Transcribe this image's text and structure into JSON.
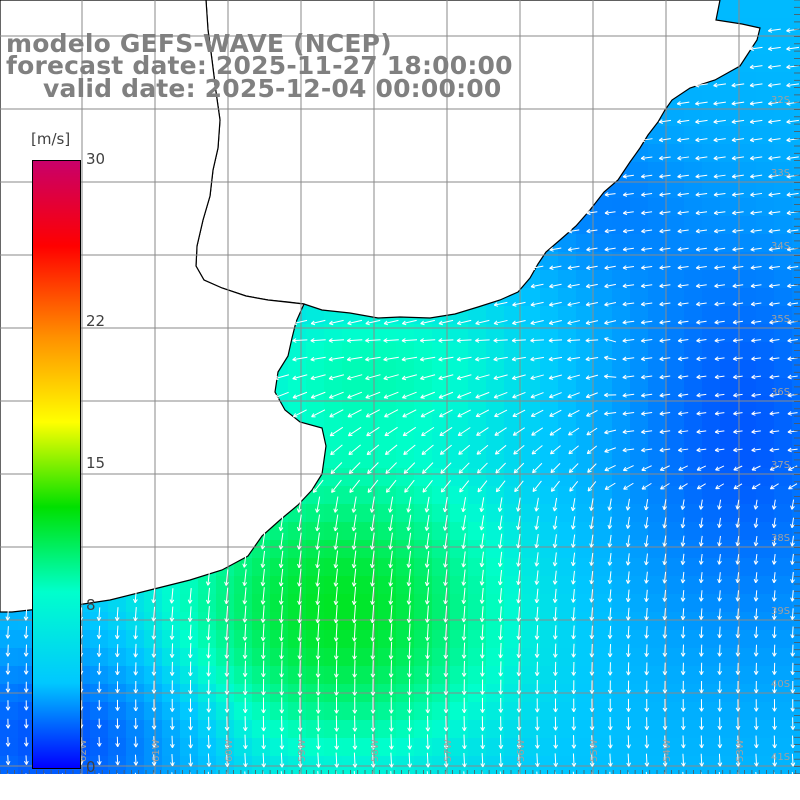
{
  "title": {
    "line1": "modelo GEFS-WAVE (NCEP)",
    "line2": "forecast date: 2025-11-27 18:00:00",
    "line3": "valid date: 2025-12-04 00:00:00"
  },
  "colorbar": {
    "unit": "[m/s]",
    "ticks": [
      {
        "label": "30",
        "value": 30
      },
      {
        "label": "22",
        "value": 22
      },
      {
        "label": "15",
        "value": 15
      },
      {
        "label": "8",
        "value": 8
      },
      {
        "label": "0",
        "value": 0
      }
    ],
    "colors": [
      "#0000ff",
      "#00c8ff",
      "#00ffcc",
      "#00e000",
      "#ffff00",
      "#ff9000",
      "#ff0000",
      "#c8006a"
    ]
  },
  "map": {
    "lat_labels": [
      "32S",
      "33S",
      "34S",
      "35S",
      "36S",
      "37S",
      "38S",
      "39S",
      "40S",
      "41S"
    ],
    "lon_labels": [
      "62W",
      "61W",
      "60W",
      "59W",
      "58W",
      "57W",
      "56W",
      "55W",
      "54W",
      "53W"
    ],
    "land_color": "#ffffff",
    "grid_color": "#8a8a8a",
    "arrow_color": "#ffffff"
  }
}
